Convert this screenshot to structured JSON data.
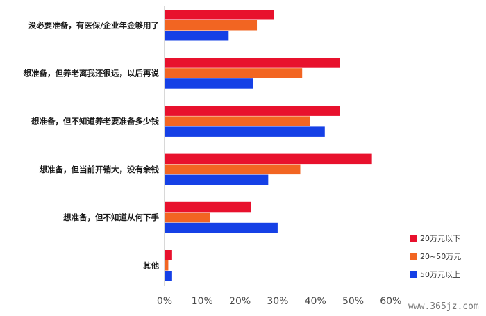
{
  "chart_data": {
    "type": "bar",
    "orientation": "horizontal",
    "title": "",
    "xlabel": "",
    "ylabel": "",
    "categories": [
      "没必要准备，有医保/企业年金够用了",
      "想准备，但养老离我还很远，以后再说",
      "想准备，但不知道养老要准备多少钱",
      "想准备，但当前开销大，没有余钱",
      "想准备，但不知道从何下手",
      "其他"
    ],
    "series": [
      {
        "name": "20万元以下",
        "color": "#e8112d",
        "values": [
          29,
          46.5,
          46.5,
          55,
          23,
          2
        ]
      },
      {
        "name": "20~50万元",
        "color": "#f26522",
        "values": [
          24.5,
          36.5,
          38.5,
          36,
          12,
          1
        ]
      },
      {
        "name": "50万元以上",
        "color": "#1540e6",
        "values": [
          17,
          23.5,
          42.5,
          27.5,
          30,
          2
        ]
      }
    ],
    "xlim": [
      0,
      60
    ],
    "xticks": [
      "0%",
      "10%",
      "20%",
      "30%",
      "40%",
      "50%",
      "60%"
    ],
    "grid": false,
    "legend_position": "bottom-right"
  },
  "watermark": "www.365jz.com"
}
